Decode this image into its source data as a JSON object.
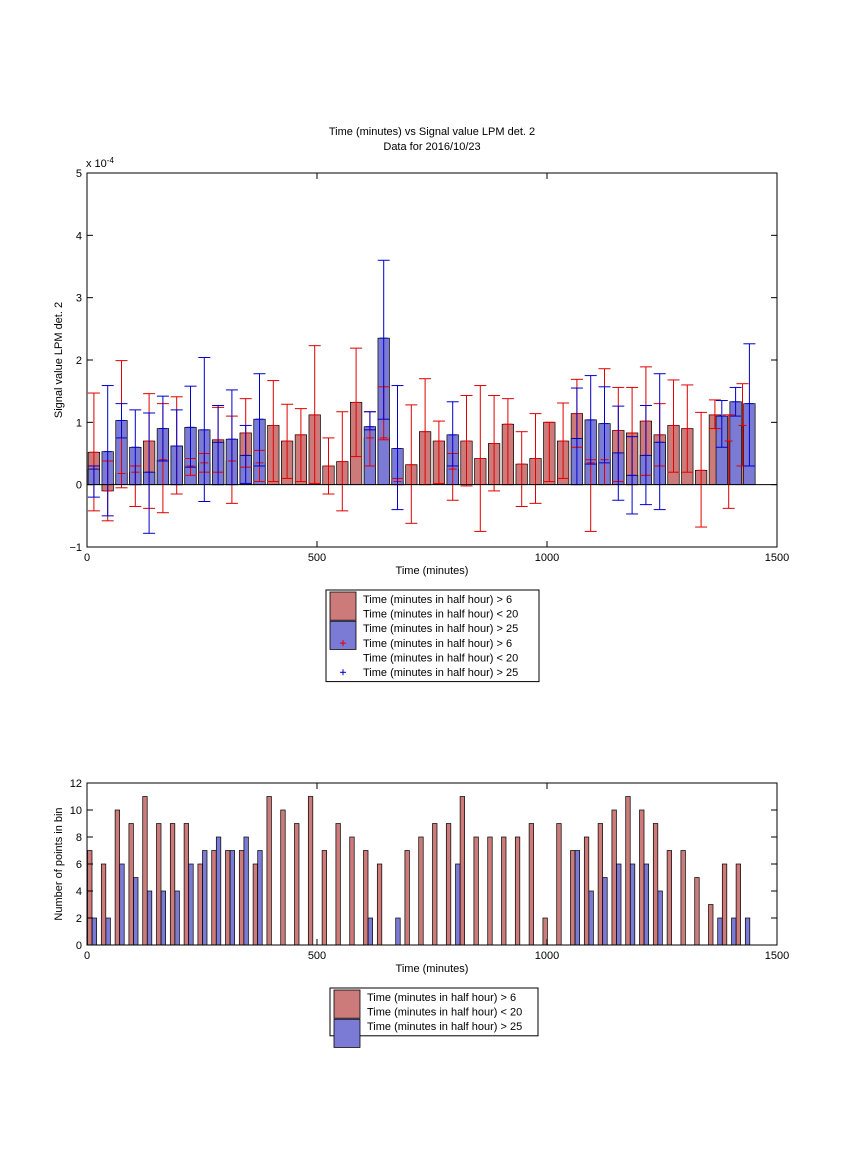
{
  "chart_data": [
    {
      "type": "bar",
      "title": "Time (minutes) vs Signal value LPM det. 2",
      "subtitle": "Data for 2016/10/23",
      "xlabel": "Time (minutes)",
      "ylabel": "Signal value LPM det. 2",
      "yexponent_label": "x 10",
      "yexponent_power": "-4",
      "xlim": [
        0,
        1500
      ],
      "ylim": [
        -1,
        5
      ],
      "xticks": [
        "0",
        "500",
        "1000",
        "1500"
      ],
      "yticks": [
        "−1",
        "0",
        "1",
        "2",
        "3",
        "4",
        "5"
      ],
      "grid": false,
      "legend_position": "below",
      "legend": [
        {
          "label": "Time (minutes in half hour) > 6",
          "kind": "bar",
          "color": "#cd7a7a"
        },
        {
          "label": "Time (minutes in half hour) < 20",
          "kind": "none",
          "color": "#cd7a7a"
        },
        {
          "label": "Time (minutes in half hour) > 25",
          "kind": "bar",
          "color": "#7b7bd6"
        },
        {
          "label": "Time (minutes in half hour) > 6",
          "kind": "marker",
          "color": "#e00000"
        },
        {
          "label": "Time (minutes in half hour) < 20",
          "kind": "none",
          "color": "#e00000"
        },
        {
          "label": "Time (minutes in half hour) > 25",
          "kind": "marker",
          "color": "#0000cc"
        }
      ],
      "series": [
        {
          "color": "#cd7a7a",
          "error_color": "#e00000",
          "x": [
            15,
            45,
            75,
            105,
            135,
            165,
            195,
            225,
            255,
            285,
            315,
            345,
            375,
            405,
            435,
            465,
            495,
            525,
            555,
            585,
            615,
            645,
            675,
            705,
            735,
            765,
            795,
            825,
            855,
            885,
            915,
            945,
            975,
            1005,
            1035,
            1065,
            1095,
            1125,
            1155,
            1185,
            1215,
            1245,
            1275,
            1305,
            1335,
            1365,
            1395,
            1425
          ],
          "values": [
            0.52,
            -0.1,
            0.18,
            0.2,
            0.7,
            0.4,
            0.62,
            0.3,
            0.35,
            0.72,
            0.38,
            0.83,
            0.35,
            0.95,
            0.7,
            0.8,
            1.12,
            0.3,
            0.37,
            1.32,
            0.75,
            0.75,
            0.05,
            0.32,
            0.85,
            0.7,
            0.25,
            0.7,
            0.42,
            0.66,
            0.97,
            0.33,
            0.42,
            1.0,
            0.7,
            1.14,
            0.35,
            0.4,
            0.87,
            0.83,
            1.02,
            0.8,
            0.95,
            0.9,
            0.23,
            1.12,
            0.7,
            0.95
          ],
          "err_low": [
            -0.42,
            -0.58,
            -0.05,
            -0.35,
            -0.38,
            -0.45,
            -0.15,
            0.15,
            0.2,
            0.2,
            -0.3,
            0.28,
            0.05,
            0.05,
            0.1,
            0.05,
            0.02,
            -0.15,
            -0.42,
            0.45,
            0.3,
            0.72,
            0.0,
            -0.62,
            0.0,
            0.02,
            -0.25,
            -0.02,
            -0.75,
            -0.1,
            0.0,
            -0.35,
            -0.3,
            0.05,
            0.1,
            0.6,
            -0.75,
            0.0,
            0.05,
            0.0,
            0.15,
            0.3,
            0.2,
            0.2,
            -0.68,
            0.9,
            -0.38,
            0.3
          ],
          "err_high": [
            1.47,
            0.38,
            1.99,
            0.3,
            1.46,
            1.3,
            1.41,
            0.42,
            0.5,
            1.24,
            1.1,
            1.38,
            0.55,
            1.67,
            1.29,
            1.22,
            2.23,
            0.75,
            1.17,
            2.19,
            1.17,
            1.57,
            0.1,
            1.28,
            1.7,
            1.02,
            0.5,
            1.43,
            1.59,
            1.43,
            1.38,
            0.85,
            1.14,
            1.0,
            1.31,
            1.69,
            0.4,
            1.86,
            1.56,
            1.56,
            1.89,
            1.3,
            1.68,
            1.6,
            1.16,
            1.36,
            1.12,
            1.62
          ]
        },
        {
          "color": "#7b7bd6",
          "error_color": "#0000cc",
          "x": [
            15,
            45,
            75,
            105,
            135,
            165,
            195,
            225,
            255,
            285,
            315,
            345,
            375,
            615,
            645,
            675,
            795,
            1065,
            1095,
            1125,
            1155,
            1185,
            1215,
            1245,
            1380,
            1410,
            1440
          ],
          "values": [
            0.25,
            0.53,
            1.03,
            0.6,
            0.2,
            0.9,
            0.62,
            0.92,
            0.88,
            0.68,
            0.73,
            0.47,
            1.05,
            0.93,
            2.35,
            0.58,
            0.8,
            0.74,
            1.04,
            0.98,
            0.51,
            0.15,
            0.47,
            0.68,
            1.1,
            1.33,
            1.3
          ],
          "err_low": [
            -0.2,
            -0.5,
            0.75,
            0.0,
            -0.78,
            0.38,
            0.0,
            0.28,
            -0.27,
            0.0,
            0.0,
            0.02,
            0.3,
            0.88,
            1.05,
            -0.4,
            0.3,
            0.0,
            0.33,
            0.35,
            -0.25,
            -0.47,
            -0.32,
            -0.4,
            0.6,
            1.1,
            0.3
          ],
          "err_high": [
            0.3,
            1.59,
            1.3,
            1.2,
            1.15,
            1.42,
            1.2,
            1.58,
            2.04,
            1.27,
            1.52,
            0.95,
            1.78,
            1.17,
            3.6,
            1.59,
            1.33,
            1.55,
            1.75,
            1.57,
            1.26,
            0.77,
            1.27,
            1.78,
            1.35,
            1.56,
            2.26
          ]
        }
      ]
    },
    {
      "type": "bar",
      "xlabel": "Time (minutes)",
      "ylabel": "Number of points in bin",
      "xlim": [
        0,
        1500
      ],
      "ylim": [
        0,
        12
      ],
      "xticks": [
        "0",
        "500",
        "1000",
        "1500"
      ],
      "yticks": [
        "0",
        "2",
        "4",
        "6",
        "8",
        "10",
        "12"
      ],
      "grid": false,
      "legend_position": "below",
      "legend": [
        {
          "label": "Time (minutes in half hour) > 6",
          "kind": "bar",
          "color": "#cd7a7a"
        },
        {
          "label": "Time (minutes in half hour) < 20",
          "kind": "none",
          "color": "#cd7a7a"
        },
        {
          "label": "Time (minutes in half hour) > 25",
          "kind": "bar",
          "color": "#7b7bd6"
        }
      ],
      "series": [
        {
          "color": "#cd7a7a",
          "x": [
            6,
            36,
            66,
            96,
            126,
            156,
            186,
            216,
            246,
            276,
            306,
            336,
            366,
            396,
            426,
            456,
            486,
            516,
            546,
            576,
            606,
            636,
            696,
            726,
            756,
            786,
            816,
            846,
            876,
            906,
            936,
            966,
            996,
            1026,
            1056,
            1086,
            1116,
            1146,
            1176,
            1206,
            1236,
            1266,
            1296,
            1326,
            1356,
            1386,
            1416
          ],
          "values": [
            7,
            6,
            10,
            9,
            11,
            9,
            9,
            9,
            6,
            7,
            7,
            7,
            6,
            11,
            10,
            9,
            11,
            7,
            9,
            8,
            7,
            6,
            7,
            8,
            9,
            9,
            11,
            8,
            8,
            8,
            8,
            9,
            2,
            9,
            7,
            8,
            9,
            10,
            11,
            10,
            9,
            7,
            7,
            5,
            3,
            6,
            6
          ]
        },
        {
          "color": "#7b7bd6",
          "x": [
            16,
            46,
            76,
            106,
            136,
            166,
            196,
            226,
            256,
            286,
            316,
            346,
            376,
            616,
            676,
            806,
            1066,
            1096,
            1126,
            1156,
            1186,
            1216,
            1246,
            1376,
            1406,
            1436
          ],
          "values": [
            2,
            2,
            6,
            5,
            4,
            4,
            4,
            6,
            7,
            8,
            7,
            8,
            7,
            2,
            2,
            6,
            7,
            4,
            5,
            6,
            6,
            6,
            4,
            2,
            2,
            2
          ]
        }
      ]
    }
  ]
}
